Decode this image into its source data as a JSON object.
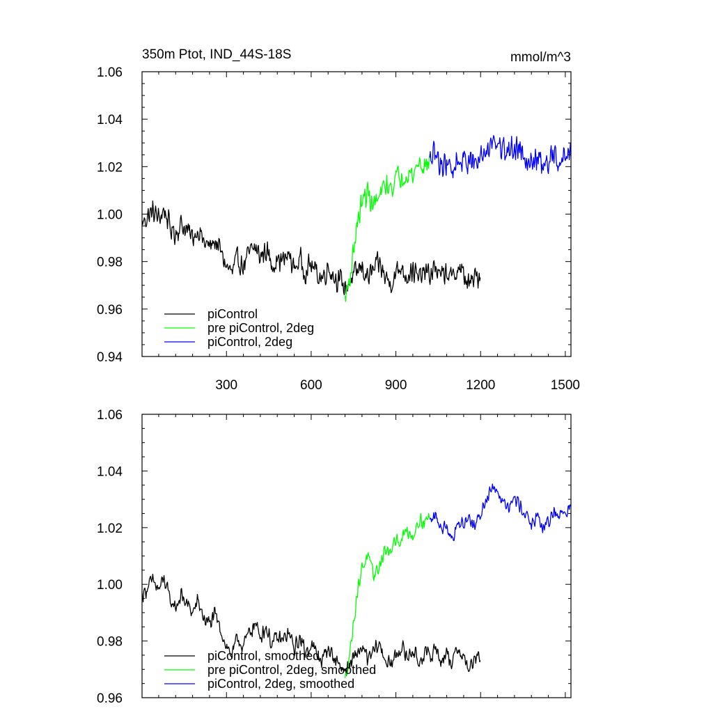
{
  "chart_data": [
    {
      "type": "line",
      "title": "350m Ptot, IND_44S-18S",
      "units": "mmol/m^3",
      "xlim": [
        1,
        1520
      ],
      "ylim": [
        0.94,
        1.06
      ],
      "xticks": [
        300,
        600,
        900,
        1200,
        1500
      ],
      "xtick_labels": [
        "300",
        "600",
        "900",
        "1200",
        "1500"
      ],
      "yticks": [
        0.94,
        0.96,
        0.98,
        1.0,
        1.02,
        1.04,
        1.06
      ],
      "ytick_labels": [
        "0.94",
        "0.96",
        "0.98",
        "1.00",
        "1.02",
        "1.04",
        "1.06"
      ],
      "grid": false,
      "legend_position": "bottom-left",
      "series": [
        {
          "name": "piControl",
          "color": "#000000",
          "x": [
            1,
            20,
            40,
            60,
            80,
            100,
            120,
            140,
            160,
            180,
            200,
            220,
            240,
            260,
            280,
            300,
            320,
            340,
            360,
            380,
            400,
            420,
            440,
            460,
            480,
            500,
            520,
            540,
            560,
            580,
            600,
            620,
            640,
            660,
            680,
            700,
            720,
            740,
            760,
            780,
            800,
            820,
            840,
            860,
            880,
            900,
            920,
            940,
            960,
            980,
            1000,
            1020,
            1040,
            1060,
            1080,
            1100,
            1120,
            1140,
            1160,
            1180,
            1200
          ],
          "y": [
            0.996,
            0.999,
            1.001,
            0.998,
            1.002,
            0.994,
            0.992,
            0.996,
            0.993,
            0.99,
            0.994,
            0.988,
            0.986,
            0.989,
            0.984,
            0.978,
            0.975,
            0.981,
            0.978,
            0.983,
            0.986,
            0.982,
            0.985,
            0.979,
            0.981,
            0.98,
            0.983,
            0.977,
            0.981,
            0.976,
            0.979,
            0.975,
            0.973,
            0.978,
            0.974,
            0.972,
            0.969,
            0.972,
            0.975,
            0.978,
            0.973,
            0.976,
            0.979,
            0.974,
            0.971,
            0.975,
            0.978,
            0.974,
            0.977,
            0.972,
            0.976,
            0.974,
            0.978,
            0.973,
            0.976,
            0.972,
            0.978,
            0.974,
            0.97,
            0.973,
            0.975
          ],
          "noise": 0.006
        },
        {
          "name": "pre piControl, 2deg",
          "color": "#00ff00",
          "x": [
            720,
            740,
            760,
            780,
            800,
            820,
            840,
            860,
            880,
            900,
            920,
            940,
            960,
            980,
            1000,
            1020
          ],
          "y": [
            0.964,
            0.975,
            0.994,
            1.005,
            1.009,
            1.004,
            1.006,
            1.012,
            1.011,
            1.015,
            1.016,
            1.018,
            1.016,
            1.022,
            1.02,
            1.022
          ],
          "noise": 0.006
        },
        {
          "name": "piControl, 2deg",
          "color": "#0000ff",
          "x": [
            1020,
            1040,
            1060,
            1080,
            1100,
            1120,
            1140,
            1160,
            1180,
            1200,
            1220,
            1240,
            1260,
            1280,
            1300,
            1320,
            1340,
            1360,
            1380,
            1400,
            1420,
            1440,
            1460,
            1480,
            1500,
            1520
          ],
          "y": [
            1.022,
            1.025,
            1.021,
            1.022,
            1.018,
            1.023,
            1.022,
            1.024,
            1.02,
            1.024,
            1.027,
            1.032,
            1.03,
            1.028,
            1.026,
            1.029,
            1.028,
            1.025,
            1.022,
            1.024,
            1.019,
            1.021,
            1.025,
            1.022,
            1.024,
            1.026
          ],
          "noise": 0.007
        }
      ]
    },
    {
      "type": "line",
      "xlim": [
        1,
        1520
      ],
      "ylim": [
        0.96,
        1.06
      ],
      "xticks": [
        300,
        600,
        900,
        1200,
        1500
      ],
      "yticks": [
        0.96,
        0.98,
        1.0,
        1.02,
        1.04,
        1.06
      ],
      "ytick_labels": [
        "0.96",
        "0.98",
        "1.00",
        "1.02",
        "1.04",
        "1.06"
      ],
      "grid": false,
      "legend_position": "bottom-left",
      "series": [
        {
          "name": "piControl, smoothed",
          "color": "#000000",
          "x": [
            1,
            20,
            40,
            60,
            80,
            100,
            120,
            140,
            160,
            180,
            200,
            220,
            240,
            260,
            280,
            300,
            320,
            340,
            360,
            380,
            400,
            420,
            440,
            460,
            480,
            500,
            520,
            540,
            560,
            580,
            600,
            620,
            640,
            660,
            680,
            700,
            720,
            740,
            760,
            780,
            800,
            820,
            840,
            860,
            880,
            900,
            920,
            940,
            960,
            980,
            1000,
            1020,
            1040,
            1060,
            1080,
            1100,
            1120,
            1140,
            1160,
            1180,
            1200
          ],
          "y": [
            0.996,
            0.999,
            1.001,
            0.998,
            1.002,
            0.994,
            0.992,
            0.996,
            0.993,
            0.99,
            0.994,
            0.988,
            0.986,
            0.989,
            0.984,
            0.978,
            0.975,
            0.981,
            0.978,
            0.983,
            0.986,
            0.982,
            0.985,
            0.979,
            0.981,
            0.98,
            0.983,
            0.977,
            0.981,
            0.976,
            0.979,
            0.975,
            0.973,
            0.978,
            0.974,
            0.972,
            0.969,
            0.972,
            0.975,
            0.978,
            0.973,
            0.976,
            0.979,
            0.974,
            0.971,
            0.975,
            0.978,
            0.974,
            0.977,
            0.972,
            0.976,
            0.974,
            0.978,
            0.973,
            0.976,
            0.972,
            0.978,
            0.974,
            0.97,
            0.973,
            0.975
          ],
          "noise": 0.0035
        },
        {
          "name": "pre piControl, 2deg, smoothed",
          "color": "#00ff00",
          "x": [
            720,
            740,
            760,
            780,
            800,
            820,
            840,
            860,
            880,
            900,
            920,
            940,
            960,
            980,
            1000,
            1020
          ],
          "y": [
            0.966,
            0.978,
            0.995,
            1.006,
            1.01,
            1.003,
            1.006,
            1.012,
            1.011,
            1.015,
            1.016,
            1.019,
            1.017,
            1.023,
            1.022,
            1.024
          ],
          "noise": 0.003
        },
        {
          "name": "piControl, 2deg, smoothed",
          "color": "#0000ff",
          "x": [
            1020,
            1040,
            1060,
            1080,
            1100,
            1120,
            1140,
            1160,
            1180,
            1200,
            1220,
            1240,
            1260,
            1280,
            1300,
            1320,
            1340,
            1360,
            1380,
            1400,
            1420,
            1440,
            1460,
            1480,
            1500,
            1520
          ],
          "y": [
            1.022,
            1.024,
            1.02,
            1.021,
            1.016,
            1.022,
            1.021,
            1.024,
            1.02,
            1.025,
            1.03,
            1.035,
            1.033,
            1.03,
            1.028,
            1.03,
            1.028,
            1.025,
            1.021,
            1.023,
            1.02,
            1.022,
            1.026,
            1.024,
            1.026,
            1.027
          ],
          "noise": 0.003
        }
      ]
    }
  ]
}
